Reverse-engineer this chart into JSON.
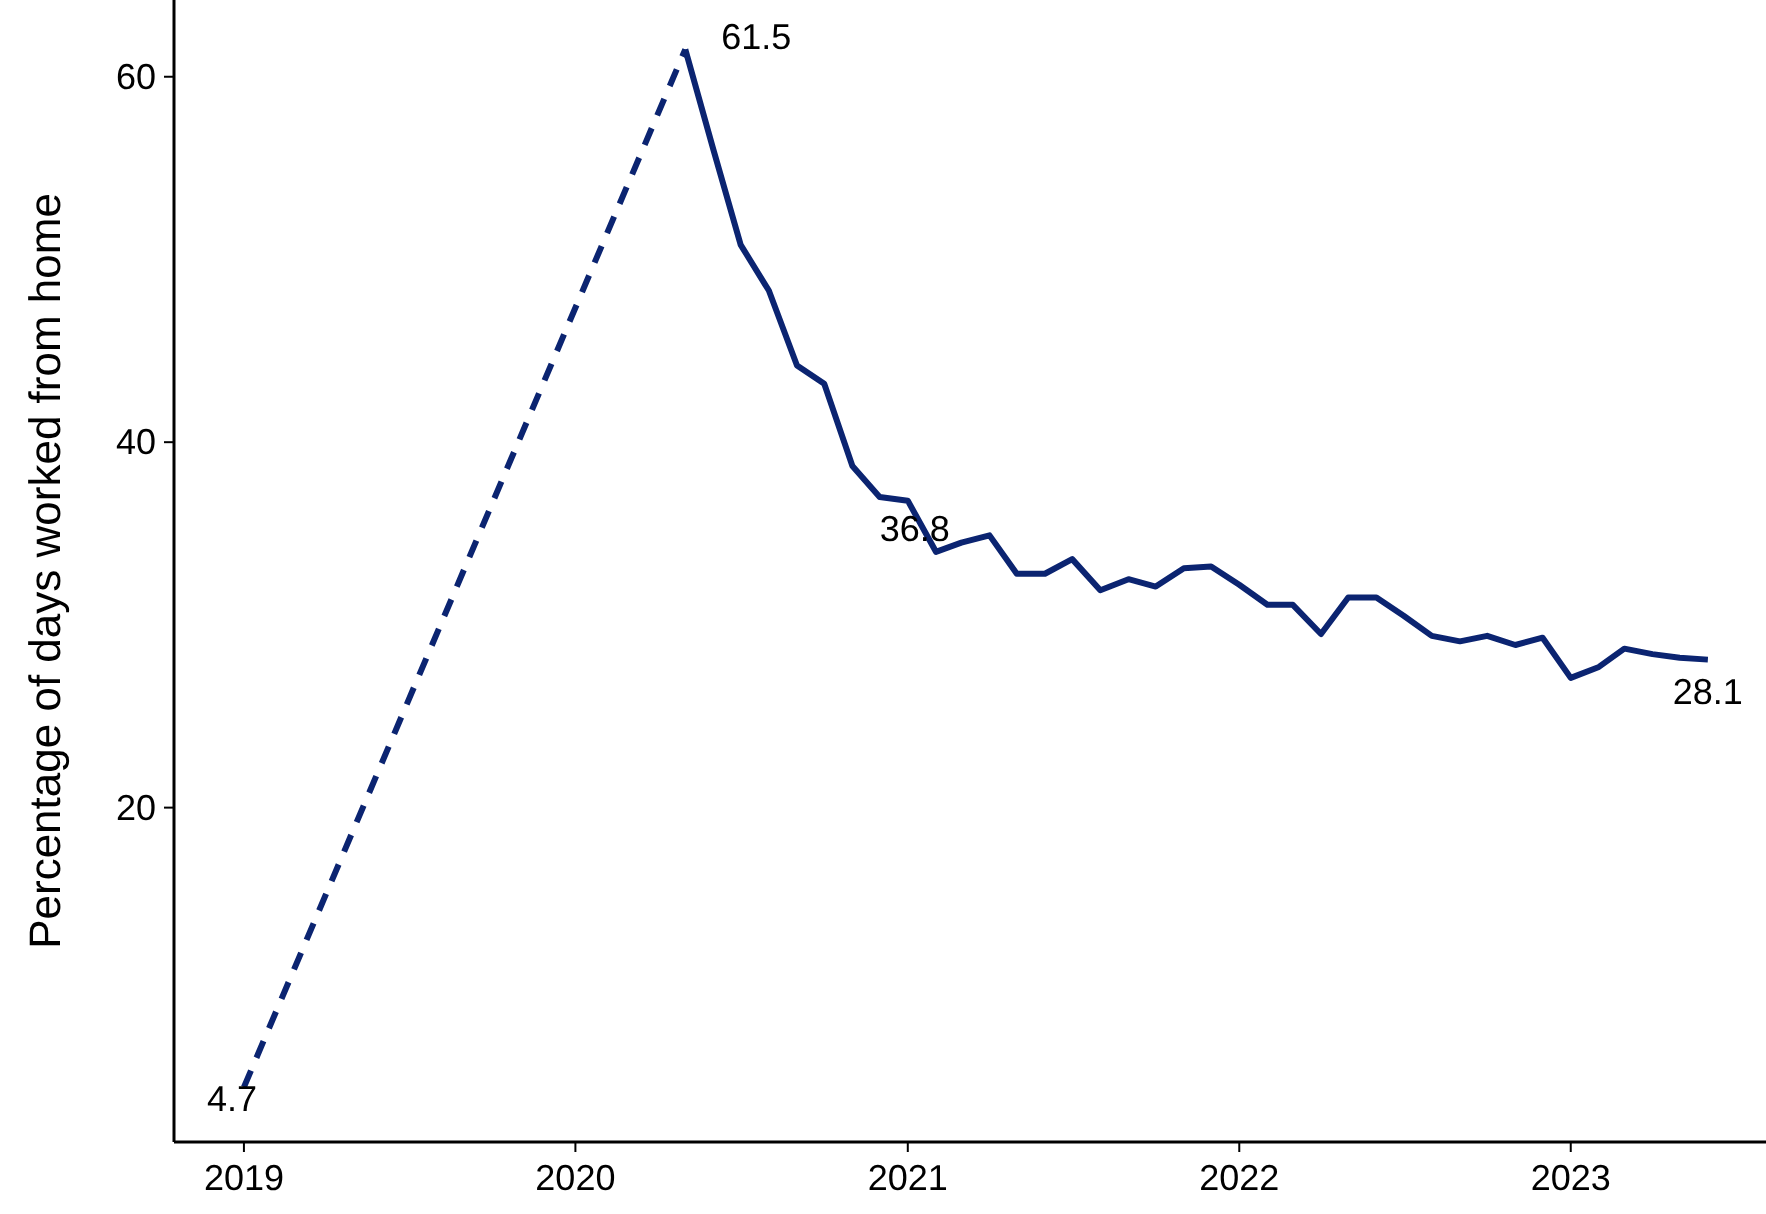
{
  "chart_data": {
    "type": "line",
    "ylabel": "Percentage of days worked from home",
    "xlim": [
      "2018-10-16",
      "2023-08-04"
    ],
    "xticks": [
      "2019",
      "2020",
      "2021",
      "2022",
      "2023"
    ],
    "ylim": [
      1.7,
      64.2
    ],
    "yticks": [
      20,
      40,
      60
    ],
    "series": [
      {
        "color": "#0b2471",
        "line_style": "dashed",
        "x": [
          "2019-01",
          "2020-05"
        ],
        "values": [
          4.7,
          61.5
        ]
      },
      {
        "color": "#0b2471",
        "line_style": "solid",
        "x": [
          "2020-05",
          "2020-06",
          "2020-07",
          "2020-08",
          "2020-09",
          "2020-10",
          "2020-11",
          "2020-12",
          "2021-01",
          "2021-02",
          "2021-03",
          "2021-04",
          "2021-05",
          "2021-06",
          "2021-07",
          "2021-08",
          "2021-09",
          "2021-10",
          "2021-11",
          "2021-12",
          "2022-01",
          "2022-02",
          "2022-03",
          "2022-04",
          "2022-05",
          "2022-06",
          "2022-07",
          "2022-08",
          "2022-09",
          "2022-10",
          "2022-11",
          "2022-12",
          "2023-01",
          "2023-02",
          "2023-03",
          "2023-04",
          "2023-05",
          "2023-06"
        ],
        "values": [
          61.5,
          56,
          50.8,
          48.3,
          44.2,
          43.2,
          38.7,
          37.0,
          36.8,
          34.0,
          34.5,
          34.9,
          32.8,
          32.8,
          33.6,
          31.9,
          32.5,
          32.1,
          33.1,
          33.2,
          32.2,
          31.1,
          31.1,
          29.5,
          31.5,
          31.5,
          30.5,
          29.4,
          29.1,
          29.4,
          28.9,
          29.3,
          27.1,
          27.7,
          28.7,
          28.4,
          28.2,
          28.1
        ]
      }
    ],
    "annotations": [
      {
        "text": "61.5",
        "x": "2020-05",
        "y": 61.5
      },
      {
        "text": "36.8",
        "x": "2021-01",
        "y": 36.8
      },
      {
        "text": "28.1",
        "x": "2023-06",
        "y": 28.1
      },
      {
        "text": "4.7",
        "x": "2019-01",
        "y": 4.7
      }
    ]
  }
}
